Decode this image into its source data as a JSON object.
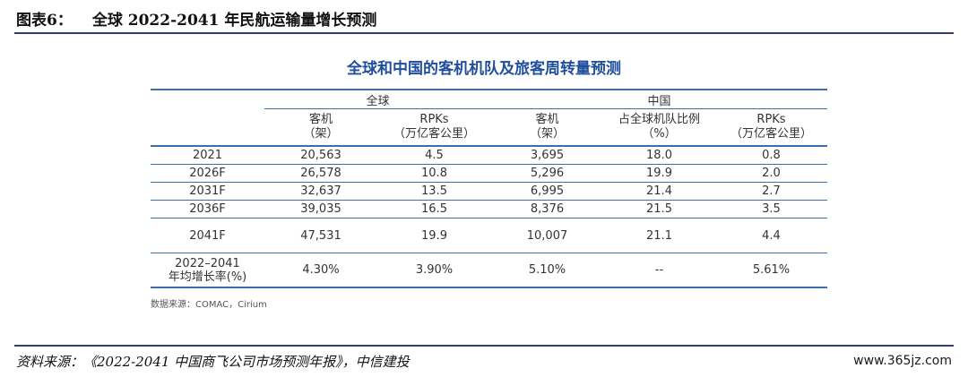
{
  "figure": {
    "label": "图表6：",
    "title": "全球 2022-2041 年民航运输量增长预测"
  },
  "table": {
    "title": "全球和中国的客机机队及旅客周转量预测",
    "groups": [
      "全球",
      "中国"
    ],
    "headers": [
      [
        "客机",
        "（架）"
      ],
      [
        "RPKs",
        "（万亿客公里）"
      ],
      [
        "客机",
        "（架）"
      ],
      [
        "占全球机队比例",
        "（%）"
      ],
      [
        "RPKs",
        "（万亿客公里）"
      ]
    ],
    "rows": [
      [
        "2021",
        "20,563",
        "4.5",
        "3,695",
        "18.0",
        "0.8"
      ],
      [
        "2026F",
        "26,578",
        "10.8",
        "5,296",
        "19.9",
        "2.0"
      ],
      [
        "2031F",
        "32,637",
        "13.5",
        "6,995",
        "21.4",
        "2.7"
      ],
      [
        "2036F",
        "39,035",
        "16.5",
        "8,376",
        "21.5",
        "3.5"
      ],
      [
        "2041F",
        "47,531",
        "19.9",
        "10,007",
        "21.1",
        "4.4"
      ]
    ],
    "growth_row": {
      "label_line1": "2022–2041",
      "label_line2": "年均增长率(%)",
      "values": [
        "4.30%",
        "3.90%",
        "5.10%",
        "--",
        "5.61%"
      ]
    },
    "source_note": "数据来源：COMAC，Cirium"
  },
  "source": "资料来源：《2022-2041  中国商飞公司市场预测年报》，中信建投",
  "watermark": "www.365jz.com"
}
